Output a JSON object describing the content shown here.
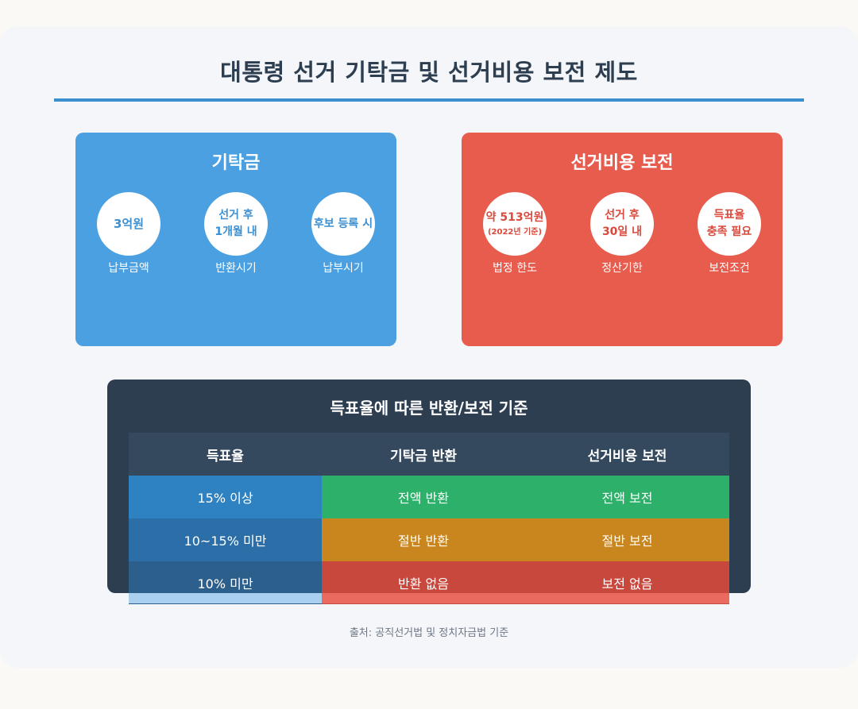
{
  "title": "대통령 선거 기탁금 및 선거비용 보전 제도",
  "deposit": {
    "title": "기탁금",
    "items": [
      {
        "value": "3억원",
        "label": "납부금액"
      },
      {
        "value_line1": "선거 후",
        "value_line2": "1개월 내",
        "label": "반환시기"
      },
      {
        "value": "후보 등록 시",
        "label": "납부시기"
      }
    ]
  },
  "reimburse": {
    "title": "선거비용 보전",
    "items": [
      {
        "value": "약 513억원",
        "sub": "(2022년 기준)",
        "label": "법정 한도"
      },
      {
        "value_line1": "선거 후",
        "value_line2": "30일 내",
        "label": "정산기한"
      },
      {
        "value_line1": "득표율",
        "value_line2": "충족 필요",
        "label": "보전조건"
      }
    ]
  },
  "table": {
    "title": "득표율에 따른 반환/보전 기준",
    "headers": [
      "득표율",
      "기탁금 반환",
      "선거비용 보전"
    ],
    "rows": [
      [
        "15% 이상",
        "전액 반환",
        "전액 보전"
      ],
      [
        "10~15% 미만",
        "절반 반환",
        "절반 보전"
      ],
      [
        "10% 미만",
        "반환 없음",
        "보전 없음"
      ]
    ]
  },
  "source": "출처: 공직선거법 및 정치자금법 기준",
  "colors": {
    "deposit_panel": "#4aa0e0",
    "reimburse_panel": "#e85c4e",
    "table_bg": "#2e3e51",
    "full": "#2db06a",
    "half": "#c9861e",
    "none": "#c8483e"
  }
}
